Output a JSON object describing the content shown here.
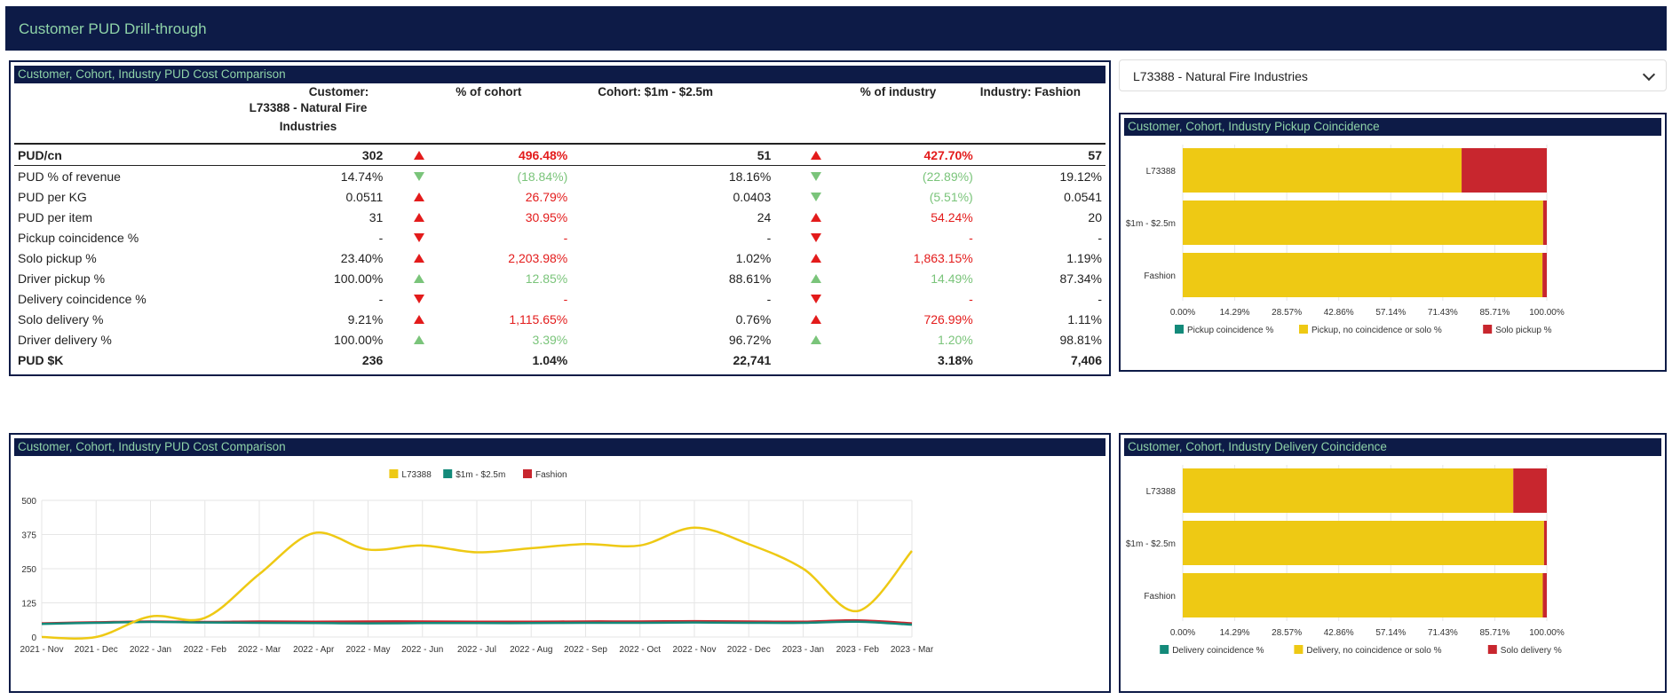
{
  "page_title": "Customer PUD Drill-through",
  "table_panel": {
    "title": "Customer, Cohort, Industry PUD Cost Comparison",
    "head": {
      "customer_label": "Customer:",
      "customer_name": "L73388 - Natural Fire Industries",
      "pct_cohort": "% of cohort",
      "cohort": "Cohort:  $1m - $2.5m",
      "pct_industry": "% of industry",
      "industry": "Industry:  Fashion"
    },
    "rows": [
      {
        "label": "PUD/cn",
        "customer": "302",
        "arrow1": "up",
        "color1": "red",
        "pct_cohort": "496.48%",
        "cohort": "51",
        "arrow2": "up",
        "color2": "red",
        "pct_industry": "427.70%",
        "industry": "57"
      },
      {
        "label": "PUD % of revenue",
        "customer": "14.74%",
        "arrow1": "down",
        "color1": "green",
        "pct_cohort": "(18.84%)",
        "cohort": "18.16%",
        "arrow2": "down",
        "color2": "green",
        "pct_industry": "(22.89%)",
        "industry": "19.12%"
      },
      {
        "label": "PUD per KG",
        "customer": "0.0511",
        "arrow1": "up",
        "color1": "red",
        "pct_cohort": "26.79%",
        "cohort": "0.0403",
        "arrow2": "down",
        "color2": "green",
        "pct_industry": "(5.51%)",
        "industry": "0.0541"
      },
      {
        "label": "PUD per item",
        "customer": "31",
        "arrow1": "up",
        "color1": "red",
        "pct_cohort": "30.95%",
        "cohort": "24",
        "arrow2": "up",
        "color2": "red",
        "pct_industry": "54.24%",
        "industry": "20"
      },
      {
        "label": "Pickup coincidence %",
        "customer": "-",
        "arrow1": "down",
        "color1": "red",
        "pct_cohort": "-",
        "cohort": "-",
        "arrow2": "down",
        "color2": "red",
        "pct_industry": "-",
        "industry": "-"
      },
      {
        "label": "Solo pickup %",
        "customer": "23.40%",
        "arrow1": "up",
        "color1": "red",
        "pct_cohort": "2,203.98%",
        "cohort": "1.02%",
        "arrow2": "up",
        "color2": "red",
        "pct_industry": "1,863.15%",
        "industry": "1.19%"
      },
      {
        "label": "Driver pickup %",
        "customer": "100.00%",
        "arrow1": "up",
        "color1": "green",
        "pct_cohort": "12.85%",
        "cohort": "88.61%",
        "arrow2": "up",
        "color2": "green",
        "pct_industry": "14.49%",
        "industry": "87.34%"
      },
      {
        "label": "Delivery coincidence %",
        "customer": "-",
        "arrow1": "down",
        "color1": "red",
        "pct_cohort": "-",
        "cohort": "-",
        "arrow2": "down",
        "color2": "red",
        "pct_industry": "-",
        "industry": "-"
      },
      {
        "label": "Solo delivery %",
        "customer": "9.21%",
        "arrow1": "up",
        "color1": "red",
        "pct_cohort": "1,115.65%",
        "cohort": "0.76%",
        "arrow2": "up",
        "color2": "red",
        "pct_industry": "726.99%",
        "industry": "1.11%"
      },
      {
        "label": "Driver delivery %",
        "customer": "100.00%",
        "arrow1": "up",
        "color1": "green",
        "pct_cohort": "3.39%",
        "cohort": "96.72%",
        "arrow2": "up",
        "color2": "green",
        "pct_industry": "1.20%",
        "industry": "98.81%"
      }
    ],
    "total": {
      "label": "PUD  $K",
      "customer": "236",
      "pct_cohort": "1.04%",
      "cohort": "22,741",
      "pct_industry": "3.18%",
      "industry": "7,406"
    }
  },
  "dropdown": {
    "selected": "L73388 - Natural Fire Industries"
  },
  "colors": {
    "yellow": "#eec914",
    "teal": "#138a7a",
    "red": "#c8262e",
    "navy": "#0d1b47",
    "title_green": "#8fd3a8"
  },
  "pickup_panel": {
    "title": "Customer, Cohort, Industry Pickup Coincidence"
  },
  "delivery_panel": {
    "title": "Customer, Cohort, Industry Delivery Coincidence"
  },
  "line_panel": {
    "title": "Customer, Cohort, Industry PUD Cost Comparison"
  },
  "chart_data": [
    {
      "type": "line",
      "title": "Customer, Cohort, Industry PUD Cost Comparison",
      "categories": [
        "2021 - Nov",
        "2021 - Dec",
        "2022 - Jan",
        "2022 - Feb",
        "2022 - Mar",
        "2022 - Apr",
        "2022 - May",
        "2022 - Jun",
        "2022 - Jul",
        "2022 - Aug",
        "2022 - Sep",
        "2022 - Oct",
        "2022 - Nov",
        "2022 - Dec",
        "2023 - Jan",
        "2023 - Feb",
        "2023 - Mar"
      ],
      "yticks": [
        0,
        125,
        250,
        375,
        500
      ],
      "ylim": [
        0,
        500
      ],
      "series": [
        {
          "name": "L73388",
          "color": "#eec914",
          "values": [
            0,
            0,
            75,
            70,
            230,
            380,
            320,
            335,
            310,
            325,
            340,
            335,
            400,
            340,
            250,
            95,
            315
          ]
        },
        {
          "name": "$1m - $2.5m",
          "color": "#138a7a",
          "values": [
            48,
            52,
            55,
            53,
            52,
            51,
            50,
            51,
            51,
            51,
            52,
            52,
            53,
            52,
            52,
            56,
            45
          ]
        },
        {
          "name": "Fashion",
          "color": "#c8262e",
          "values": [
            50,
            54,
            57,
            55,
            57,
            56,
            57,
            57,
            56,
            56,
            57,
            57,
            58,
            57,
            56,
            61,
            50
          ]
        }
      ],
      "legend": "top-center"
    },
    {
      "type": "bar",
      "orientation": "horizontal-stacked",
      "title": "Customer, Cohort, Industry Pickup Coincidence",
      "categories": [
        "L73388",
        "$1m - $2.5m",
        "Fashion"
      ],
      "xticks": [
        "0.00%",
        "14.29%",
        "28.57%",
        "42.86%",
        "57.14%",
        "71.43%",
        "85.71%",
        "100.00%"
      ],
      "series": [
        {
          "name": "Pickup coincidence %",
          "color": "#138a7a",
          "values": [
            0,
            0,
            0
          ]
        },
        {
          "name": "Pickup, no coincidence or solo %",
          "color": "#eec914",
          "values": [
            76.6,
            98.98,
            98.81
          ]
        },
        {
          "name": "Solo pickup %",
          "color": "#c8262e",
          "values": [
            23.4,
            1.02,
            1.19
          ]
        }
      ],
      "legend": "bottom-center"
    },
    {
      "type": "bar",
      "orientation": "horizontal-stacked",
      "title": "Customer, Cohort, Industry Delivery Coincidence",
      "categories": [
        "L73388",
        "$1m - $2.5m",
        "Fashion"
      ],
      "xticks": [
        "0.00%",
        "14.29%",
        "28.57%",
        "42.86%",
        "57.14%",
        "71.43%",
        "85.71%",
        "100.00%"
      ],
      "series": [
        {
          "name": "Delivery coincidence %",
          "color": "#138a7a",
          "values": [
            0,
            0,
            0
          ]
        },
        {
          "name": "Delivery, no coincidence or solo %",
          "color": "#eec914",
          "values": [
            90.79,
            99.24,
            98.89
          ]
        },
        {
          "name": "Solo delivery %",
          "color": "#c8262e",
          "values": [
            9.21,
            0.76,
            1.11
          ]
        }
      ],
      "legend": "bottom-center"
    }
  ]
}
